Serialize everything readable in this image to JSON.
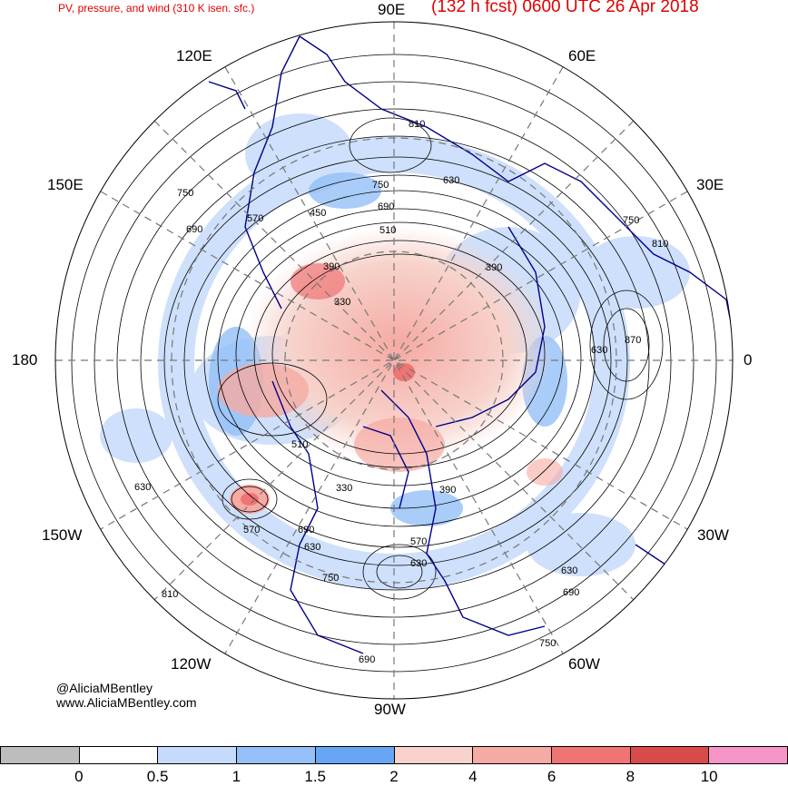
{
  "header": {
    "left_title": "PV, pressure, and wind (310 K isen. sfc.)",
    "right_title": "(132 h fcst) 0600 UTC 26 Apr 2018"
  },
  "longitude_labels": {
    "e90": "90E",
    "e120": "120E",
    "e60": "60E",
    "e150": "150E",
    "e30": "30E",
    "w180": "180",
    "zero": "0",
    "w150": "150W",
    "w30": "30W",
    "w120": "120W",
    "w60": "60W",
    "w90": "90W"
  },
  "contour_labels": [
    "810",
    "750",
    "630",
    "690",
    "570",
    "510",
    "450",
    "390",
    "330",
    "390",
    "750",
    "810",
    "870",
    "630",
    "690",
    "570",
    "510",
    "330",
    "390",
    "690",
    "630",
    "570",
    "630",
    "690",
    "750",
    "810",
    "750",
    "630",
    "690",
    "750",
    "630"
  ],
  "credit": {
    "handle": "@AliciaMBentley",
    "site": "www.AliciaMBentley.com"
  },
  "colorbar": {
    "colors": [
      "#bdbdbd",
      "#ffffff",
      "#c6dbfb",
      "#94bff8",
      "#66a6f5",
      "#f7d3cc",
      "#f5aaa3",
      "#ef7473",
      "#d94a4a",
      "#f595c8"
    ],
    "tick_labels": [
      "0",
      "0.5",
      "1",
      "1.5",
      "2",
      "4",
      "6",
      "8",
      "10"
    ]
  },
  "map": {
    "projection": "north-polar-stereographic",
    "land_outline_color": "#00008b",
    "contour_color": "#000000",
    "graticule_color": "#777777"
  }
}
